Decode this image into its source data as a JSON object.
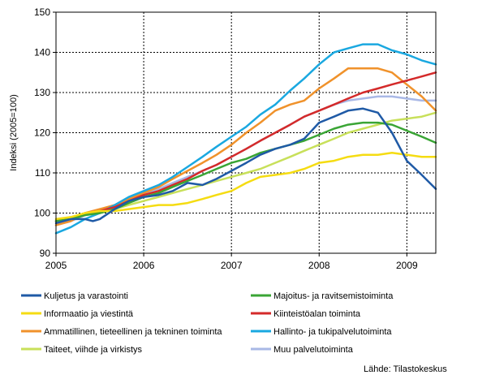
{
  "chart_data": {
    "type": "line",
    "ylabel": "Indeksi (2005=100)",
    "xlabel": "",
    "ylim": [
      90,
      150
    ],
    "yticks": [
      90,
      100,
      110,
      120,
      130,
      140,
      150
    ],
    "xlim": [
      2005.0,
      2009.33
    ],
    "xticks": [
      2005,
      2006,
      2007,
      2008,
      2009
    ],
    "grid": true,
    "legend_position": "bottom",
    "source": "Lähde: Tilastokeskus",
    "series": [
      {
        "name": "Kuljetus ja varastointi",
        "color": "#1f5aa6",
        "x": [
          2005.0,
          2005.17,
          2005.33,
          2005.42,
          2005.5,
          2005.67,
          2005.83,
          2006.0,
          2006.17,
          2006.33,
          2006.5,
          2006.67,
          2006.83,
          2007.0,
          2007.17,
          2007.33,
          2007.5,
          2007.67,
          2007.83,
          2008.0,
          2008.17,
          2008.33,
          2008.5,
          2008.67,
          2008.83,
          2009.0,
          2009.17,
          2009.33
        ],
        "y": [
          97.5,
          98.5,
          98.5,
          98.0,
          98.5,
          101.0,
          103.0,
          104.0,
          104.5,
          105.5,
          107.5,
          107.0,
          108.5,
          110.5,
          112.5,
          114.5,
          116.0,
          117.0,
          118.5,
          122.5,
          124.0,
          125.5,
          126.0,
          125.0,
          120.0,
          113.0,
          109.5,
          106.0
        ]
      },
      {
        "name": "Majoitus- ja ravitsemistoiminta",
        "color": "#3aa535",
        "x": [
          2005.0,
          2005.17,
          2005.33,
          2005.5,
          2005.67,
          2005.83,
          2006.0,
          2006.17,
          2006.33,
          2006.5,
          2006.67,
          2006.83,
          2007.0,
          2007.17,
          2007.33,
          2007.5,
          2007.67,
          2007.83,
          2008.0,
          2008.17,
          2008.33,
          2008.5,
          2008.67,
          2008.83,
          2009.0,
          2009.17,
          2009.33
        ],
        "y": [
          98.0,
          98.5,
          99.5,
          100.0,
          101.0,
          102.5,
          104.0,
          105.0,
          106.5,
          108.0,
          109.5,
          111.0,
          112.5,
          113.5,
          115.0,
          116.0,
          117.0,
          118.0,
          119.5,
          121.0,
          122.0,
          122.5,
          122.5,
          122.0,
          120.5,
          119.0,
          117.5
        ]
      },
      {
        "name": "Informaatio ja viestintä",
        "color": "#f5dc12",
        "x": [
          2005.0,
          2005.17,
          2005.33,
          2005.5,
          2005.67,
          2005.83,
          2006.0,
          2006.17,
          2006.33,
          2006.5,
          2006.67,
          2006.83,
          2007.0,
          2007.17,
          2007.33,
          2007.5,
          2007.67,
          2007.83,
          2008.0,
          2008.17,
          2008.33,
          2008.5,
          2008.67,
          2008.83,
          2009.0,
          2009.17,
          2009.33
        ],
        "y": [
          98.5,
          99.0,
          100.0,
          100.5,
          100.5,
          101.0,
          101.5,
          102.0,
          102.0,
          102.5,
          103.5,
          104.5,
          105.5,
          107.5,
          109.0,
          109.5,
          110.0,
          111.0,
          112.5,
          113.0,
          114.0,
          114.5,
          114.5,
          115.0,
          114.5,
          114.0,
          114.0
        ]
      },
      {
        "name": "Kiinteistöalan toiminta",
        "color": "#d42a2a",
        "x": [
          2005.0,
          2005.17,
          2005.33,
          2005.5,
          2005.67,
          2005.83,
          2006.0,
          2006.17,
          2006.33,
          2006.5,
          2006.67,
          2006.83,
          2007.0,
          2007.17,
          2007.33,
          2007.5,
          2007.67,
          2007.83,
          2008.0,
          2008.17,
          2008.33,
          2008.5,
          2008.67,
          2008.83,
          2009.0,
          2009.17,
          2009.33
        ],
        "y": [
          98.0,
          98.5,
          99.5,
          100.5,
          101.5,
          103.0,
          104.5,
          105.5,
          107.0,
          108.5,
          110.5,
          112.0,
          114.0,
          116.0,
          118.0,
          120.0,
          122.0,
          124.0,
          125.5,
          127.0,
          128.5,
          130.0,
          131.0,
          132.0,
          133.0,
          134.0,
          135.0
        ]
      },
      {
        "name": "Ammatillinen, tieteellinen ja tekninen toiminta",
        "color": "#f0922b",
        "x": [
          2005.0,
          2005.17,
          2005.33,
          2005.5,
          2005.67,
          2005.83,
          2006.0,
          2006.17,
          2006.33,
          2006.5,
          2006.67,
          2006.83,
          2007.0,
          2007.17,
          2007.33,
          2007.5,
          2007.67,
          2007.83,
          2008.0,
          2008.17,
          2008.33,
          2008.5,
          2008.67,
          2008.83,
          2009.0,
          2009.17,
          2009.33
        ],
        "y": [
          97.0,
          98.0,
          100.0,
          101.0,
          102.0,
          103.5,
          105.0,
          106.5,
          108.5,
          110.5,
          112.5,
          114.5,
          117.0,
          120.0,
          122.5,
          125.5,
          127.0,
          128.0,
          131.0,
          133.5,
          136.0,
          136.0,
          136.0,
          135.0,
          132.0,
          129.0,
          125.5
        ]
      },
      {
        "name": "Hallinto- ja tukipalvelutoiminta",
        "color": "#1aa8e0",
        "x": [
          2005.0,
          2005.17,
          2005.33,
          2005.5,
          2005.67,
          2005.83,
          2006.0,
          2006.17,
          2006.33,
          2006.5,
          2006.67,
          2006.83,
          2007.0,
          2007.17,
          2007.33,
          2007.5,
          2007.67,
          2007.83,
          2008.0,
          2008.17,
          2008.33,
          2008.5,
          2008.67,
          2008.83,
          2009.0,
          2009.17,
          2009.33
        ],
        "y": [
          95.0,
          96.5,
          98.5,
          100.0,
          102.0,
          104.0,
          105.5,
          107.0,
          109.0,
          111.5,
          114.0,
          116.5,
          119.0,
          121.5,
          124.5,
          127.0,
          130.5,
          133.5,
          137.0,
          140.0,
          141.0,
          142.0,
          142.0,
          140.5,
          139.5,
          138.0,
          137.0
        ]
      },
      {
        "name": "Taiteet, viihde ja virkistys",
        "color": "#c8e05a",
        "x": [
          2005.0,
          2005.17,
          2005.33,
          2005.5,
          2005.67,
          2005.83,
          2006.0,
          2006.17,
          2006.33,
          2006.5,
          2006.67,
          2006.83,
          2007.0,
          2007.17,
          2007.33,
          2007.5,
          2007.67,
          2007.83,
          2008.0,
          2008.17,
          2008.33,
          2008.5,
          2008.67,
          2008.83,
          2009.0,
          2009.17,
          2009.33
        ],
        "y": [
          98.0,
          99.0,
          99.5,
          100.0,
          101.0,
          102.0,
          103.0,
          104.0,
          105.0,
          106.0,
          107.0,
          108.0,
          109.0,
          110.0,
          111.0,
          112.5,
          114.0,
          115.5,
          117.0,
          118.5,
          120.0,
          121.0,
          122.0,
          123.0,
          123.5,
          124.0,
          125.0
        ]
      },
      {
        "name": "Muu palvelutoiminta",
        "color": "#a9b8e6",
        "x": [
          2005.0,
          2005.17,
          2005.33,
          2005.5,
          2005.67,
          2005.83,
          2006.0,
          2006.17,
          2006.33,
          2006.5,
          2006.67,
          2006.83,
          2007.0,
          2007.17,
          2007.33,
          2007.5,
          2007.67,
          2007.83,
          2008.0,
          2008.17,
          2008.33,
          2008.5,
          2008.67,
          2008.83,
          2009.0,
          2009.17,
          2009.33
        ],
        "y": [
          97.0,
          98.0,
          99.5,
          100.5,
          101.5,
          103.0,
          104.5,
          106.0,
          107.5,
          109.0,
          110.5,
          112.0,
          114.0,
          116.0,
          118.0,
          120.0,
          122.0,
          124.0,
          125.5,
          127.0,
          128.0,
          128.5,
          129.0,
          129.0,
          128.5,
          128.0,
          128.0
        ]
      }
    ]
  }
}
